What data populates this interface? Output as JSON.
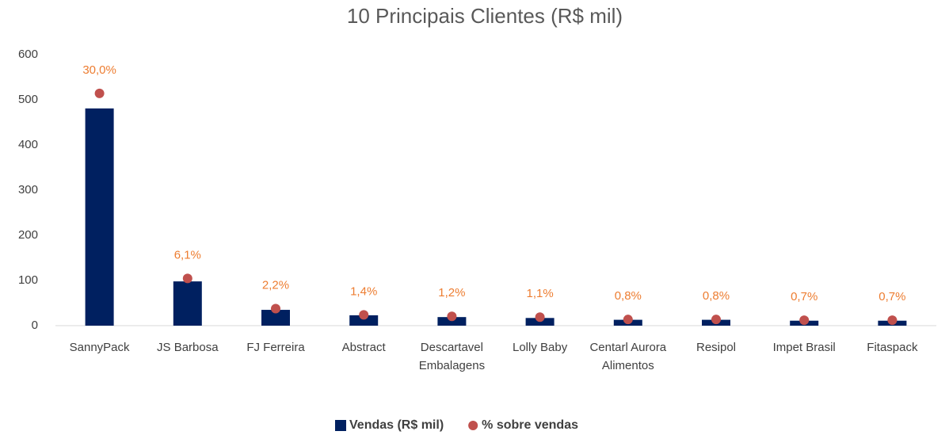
{
  "chart_data": {
    "type": "bar",
    "title": "10 Principais Clientes (R$ mil)",
    "categories": [
      "SannyPack",
      "JS Barbosa",
      "FJ Ferreira",
      "Abstract",
      "Descartavel Embalagens",
      "Lolly Baby",
      "Centarl Aurora Alimentos",
      "Resipol",
      "Impet Brasil",
      "Fitaspack"
    ],
    "series": [
      {
        "name": "Vendas (R$ mil)",
        "color": "#002060",
        "type": "bar",
        "values": [
          481,
          98,
          35,
          23,
          19,
          17,
          13,
          13,
          11,
          11
        ]
      },
      {
        "name": "% sobre vendas",
        "color": "#c0504d",
        "type": "scatter",
        "axis": "y2",
        "label_color": "#ed7d31",
        "values": [
          30.0,
          6.1,
          2.2,
          1.4,
          1.2,
          1.1,
          0.8,
          0.8,
          0.7,
          0.7
        ],
        "value_labels": [
          "30,0%",
          "6,1%",
          "2,2%",
          "1,4%",
          "1,2%",
          "1,1%",
          "0,8%",
          "0,8%",
          "0,7%",
          "0,7%"
        ]
      }
    ],
    "ylim": [
      0,
      600
    ],
    "yticks": [
      0,
      100,
      200,
      300,
      400,
      500,
      600
    ],
    "y2lim": [
      0,
      35
    ],
    "grid": false,
    "legend": "bottom"
  }
}
